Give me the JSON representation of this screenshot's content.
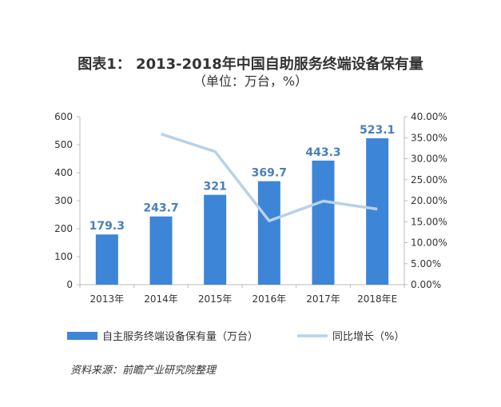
{
  "chart_data": {
    "type": "bar",
    "title": "图表1：  2013-2018年中国自助服务终端设备保有量",
    "subtitle": "（单位：万台，%）",
    "categories": [
      "2013年",
      "2014年",
      "2015年",
      "2016年",
      "2017年",
      "2018年E"
    ],
    "series": [
      {
        "name": "自主服务终端设备保有量（万台）",
        "type": "bar",
        "axis": "left",
        "color": "#3d85d6",
        "values": [
          179.3,
          243.7,
          321,
          369.7,
          443.3,
          523.1
        ],
        "labels": [
          "179.3",
          "243.7",
          "321",
          "369.7",
          "443.3",
          "523.1"
        ]
      },
      {
        "name": "同比增长（%）",
        "type": "line",
        "axis": "right",
        "color": "#b8d1ea",
        "values": [
          null,
          35.9,
          31.7,
          15.2,
          19.9,
          18.0
        ]
      }
    ],
    "y_left": {
      "min": 0,
      "max": 600,
      "ticks": [
        "0",
        "100",
        "200",
        "300",
        "400",
        "500",
        "600"
      ]
    },
    "y_right": {
      "min": 0,
      "max": 40,
      "ticks": [
        "0.00%",
        "5.00%",
        "10.00%",
        "15.00%",
        "20.00%",
        "25.00%",
        "30.00%",
        "35.00%",
        "40.00%"
      ]
    },
    "grid": false,
    "legend_position": "bottom",
    "label_color": "#4a7fb8"
  },
  "source_text": "资料来源：前瞻产业研究院整理"
}
